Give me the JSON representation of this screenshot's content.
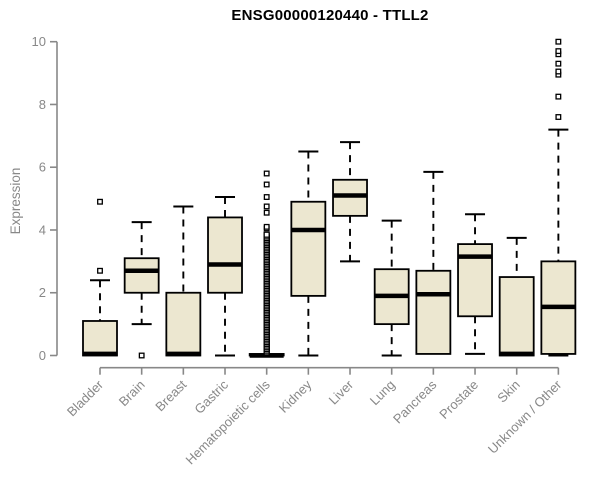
{
  "chart_data": {
    "type": "boxplot",
    "title": "ENSG00000120440 - TTLL2",
    "xlabel": "",
    "ylabel": "Expression",
    "ylim": [
      0,
      10
    ],
    "yticks": [
      0,
      2,
      4,
      6,
      8,
      10
    ],
    "grid": false,
    "legend": false,
    "box_fill_color": "#ece7d0",
    "box_stroke_color": "#000000",
    "axis_color": "#888888",
    "categories": [
      "Bladder",
      "Brain",
      "Breast",
      "Gastric",
      "Hematopoietic cells",
      "Kidney",
      "Liver",
      "Lung",
      "Pancreas",
      "Prostate",
      "Skin",
      "Unknown / Other"
    ],
    "series": [
      {
        "category": "Bladder",
        "whisker_low": 0,
        "q1": 0,
        "median": 0.05,
        "q3": 1.1,
        "whisker_high": 2.4,
        "outliers": [
          2.7,
          4.9
        ]
      },
      {
        "category": "Brain",
        "whisker_low": 1.0,
        "q1": 2.0,
        "median": 2.7,
        "q3": 3.1,
        "whisker_high": 4.25,
        "outliers": [
          0
        ]
      },
      {
        "category": "Breast",
        "whisker_low": 0,
        "q1": 0,
        "median": 0.05,
        "q3": 2.0,
        "whisker_high": 4.75,
        "outliers": []
      },
      {
        "category": "Gastric",
        "whisker_low": 0,
        "q1": 2.0,
        "median": 2.9,
        "q3": 4.4,
        "whisker_high": 5.05,
        "outliers": []
      },
      {
        "category": "Hematopoietic cells",
        "whisker_low": 0,
        "q1": 0,
        "median": 0,
        "q3": 0.05,
        "whisker_high": 0.05,
        "outliers": [
          4.05,
          4.1,
          4.55,
          4.75,
          5.05,
          5.45,
          5.8
        ],
        "outlier_column": {
          "min": 0.1,
          "max": 3.85,
          "count": 70
        }
      },
      {
        "category": "Kidney",
        "whisker_low": 0,
        "q1": 1.9,
        "median": 4.0,
        "q3": 4.9,
        "whisker_high": 6.5,
        "outliers": []
      },
      {
        "category": "Liver",
        "whisker_low": 3.0,
        "q1": 4.45,
        "median": 5.1,
        "q3": 5.6,
        "whisker_high": 6.8,
        "outliers": []
      },
      {
        "category": "Lung",
        "whisker_low": 0,
        "q1": 1.0,
        "median": 1.9,
        "q3": 2.75,
        "whisker_high": 4.3,
        "outliers": []
      },
      {
        "category": "Pancreas",
        "whisker_low": 0.05,
        "q1": 0.05,
        "median": 1.95,
        "q3": 2.7,
        "whisker_high": 5.85,
        "outliers": []
      },
      {
        "category": "Prostate",
        "whisker_low": 0.05,
        "q1": 1.25,
        "median": 3.15,
        "q3": 3.55,
        "whisker_high": 4.5,
        "outliers": []
      },
      {
        "category": "Skin",
        "whisker_low": 0,
        "q1": 0,
        "median": 0.05,
        "q3": 2.5,
        "whisker_high": 3.75,
        "outliers": []
      },
      {
        "category": "Unknown / Other",
        "whisker_low": 0,
        "q1": 0.05,
        "median": 1.55,
        "q3": 3.0,
        "whisker_high": 7.2,
        "outliers": [
          7.6,
          8.25,
          8.95,
          9.05,
          9.3,
          9.6,
          9.7,
          10.0
        ]
      }
    ]
  }
}
